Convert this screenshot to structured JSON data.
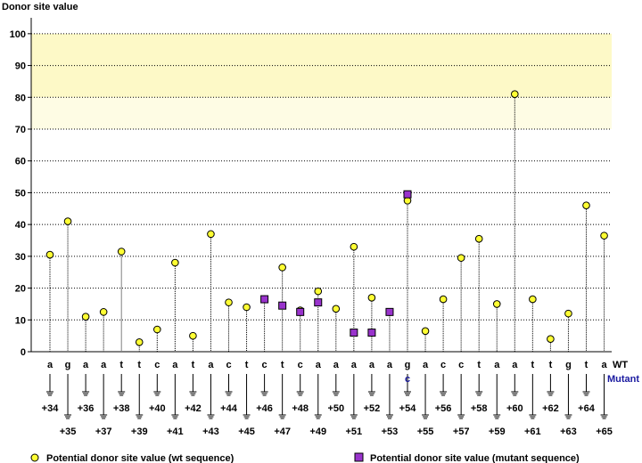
{
  "chart_data": {
    "type": "scatter",
    "ylabel": "Donor site value",
    "ylim": [
      0,
      105
    ],
    "yticks": [
      0,
      10,
      20,
      30,
      40,
      50,
      60,
      70,
      80,
      90,
      100
    ],
    "grid": true,
    "highlight_bands": [
      {
        "from": 80,
        "to": 100,
        "color": "#fdf9c7"
      },
      {
        "from": 70,
        "to": 80,
        "color": "#fefce4"
      }
    ],
    "row_labels": {
      "wt": "WT",
      "mutant": "Mutant"
    },
    "positions": [
      "+34",
      "+35",
      "+36",
      "+37",
      "+38",
      "+39",
      "+40",
      "+41",
      "+42",
      "+43",
      "+44",
      "+45",
      "+46",
      "+47",
      "+48",
      "+49",
      "+50",
      "+51",
      "+52",
      "+53",
      "+54",
      "+55",
      "+56",
      "+57",
      "+58",
      "+59",
      "+60",
      "+61",
      "+62",
      "+63",
      "+64",
      "+65"
    ],
    "wt_sequence": [
      "a",
      "g",
      "a",
      "a",
      "t",
      "t",
      "c",
      "a",
      "t",
      "a",
      "c",
      "t",
      "c",
      "t",
      "c",
      "a",
      "a",
      "a",
      "a",
      "a",
      "g",
      "a",
      "c",
      "c",
      "t",
      "a",
      "a",
      "t",
      "t",
      "g",
      "t",
      "a"
    ],
    "mutant_sequence": [
      "",
      "",
      "",
      "",
      "",
      "",
      "",
      "",
      "",
      "",
      "",
      "",
      "",
      "",
      "",
      "",
      "",
      "",
      "",
      "",
      "c",
      "",
      "",
      "",
      "",
      "",
      "",
      "",
      "",
      "",
      "",
      ""
    ],
    "series": [
      {
        "name": "Potential donor site value (wt sequence)",
        "marker": "circle",
        "color": "#ffff33",
        "values": [
          30.5,
          41,
          11,
          12.5,
          31.5,
          3,
          7,
          28,
          5,
          37,
          15.5,
          14,
          16.5,
          26.5,
          13,
          19,
          13.5,
          33,
          17,
          12.5,
          47.5,
          6.5,
          16.5,
          29.5,
          35.5,
          15,
          81,
          16.5,
          4,
          12,
          46,
          36.5
        ]
      },
      {
        "name": "Potential donor site value (mutant sequence)",
        "marker": "square",
        "color": "#9933cc",
        "values": [
          null,
          null,
          null,
          null,
          null,
          null,
          null,
          null,
          null,
          null,
          null,
          null,
          16.5,
          14.5,
          12.5,
          15.5,
          null,
          6,
          6,
          12.5,
          49.5,
          null,
          null,
          null,
          null,
          null,
          null,
          null,
          null,
          null,
          null,
          null
        ]
      }
    ],
    "legend": [
      {
        "label": "Potential donor site value (wt sequence)",
        "marker": "circle",
        "color": "#ffff33"
      },
      {
        "label": "Potential donor site value (mutant sequence)",
        "marker": "square",
        "color": "#9933cc"
      }
    ],
    "legend_placement": "bottom"
  }
}
